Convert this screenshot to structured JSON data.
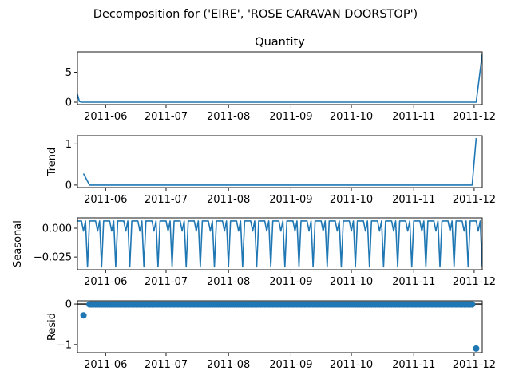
{
  "suptitle": "Decomposition for ('EIRE', 'ROSE CARAVAN DOORSTOP')",
  "chart_data": [
    {
      "type": "line",
      "panel": "observed",
      "title": "Quantity",
      "ylabel": "",
      "ylim": [
        -0.4,
        8.4
      ],
      "yticks": [
        0,
        5
      ],
      "xrange": [
        "2011-05-18",
        "2011-12-05"
      ],
      "xticks": [
        "2011-06",
        "2011-07",
        "2011-08",
        "2011-09",
        "2011-10",
        "2011-11",
        "2011-12"
      ],
      "series": [
        {
          "x": [
            "2011-05-18",
            "2011-05-19",
            "2011-05-20",
            "2011-12-01",
            "2011-12-02",
            "2011-12-05"
          ],
          "y": [
            1.3,
            0.1,
            0.0,
            0.0,
            0.0,
            8.0
          ]
        }
      ]
    },
    {
      "type": "line",
      "panel": "trend",
      "title": "",
      "ylabel": "Trend",
      "ylim": [
        -0.06,
        1.2
      ],
      "yticks": [
        0,
        1
      ],
      "xrange": [
        "2011-05-18",
        "2011-12-05"
      ],
      "xticks": [
        "2011-06",
        "2011-07",
        "2011-08",
        "2011-09",
        "2011-10",
        "2011-11",
        "2011-12"
      ],
      "series": [
        {
          "x": [
            "2011-05-21",
            "2011-05-24",
            "2011-11-30",
            "2011-12-02"
          ],
          "y": [
            0.28,
            0.0,
            0.0,
            1.14
          ]
        }
      ]
    },
    {
      "type": "line",
      "panel": "seasonal",
      "title": "",
      "ylabel": "Seasonal",
      "ylim": [
        -0.036,
        0.009
      ],
      "yticks": [
        0.0,
        -0.025
      ],
      "ytick_labels": [
        "0.000",
        "−0.025"
      ],
      "xrange": [
        "2011-05-18",
        "2011-12-05"
      ],
      "xticks": [
        "2011-06",
        "2011-07",
        "2011-08",
        "2011-09",
        "2011-10",
        "2011-11",
        "2011-12"
      ],
      "period_days": 7,
      "pattern": [
        0.0063,
        0.0063,
        0.0063,
        -0.0025,
        0.0063,
        -0.0335,
        0.0063
      ],
      "series": [
        {
          "x_start": "2011-05-18",
          "x_end": "2011-12-05"
        }
      ]
    },
    {
      "type": "scatter",
      "panel": "resid",
      "title": "",
      "ylabel": "Resid",
      "ylim": [
        -1.2,
        0.08
      ],
      "yticks": [
        0,
        -1
      ],
      "ytick_labels": [
        "0",
        "−1"
      ],
      "xrange": [
        "2011-05-18",
        "2011-12-05"
      ],
      "xticks": [
        "2011-06",
        "2011-07",
        "2011-08",
        "2011-09",
        "2011-10",
        "2011-11",
        "2011-12"
      ],
      "zero_line": true,
      "series": [
        {
          "x_start": "2011-05-24",
          "x_end": "2011-11-30",
          "baseline": -0.01,
          "outliers": [
            {
              "x": "2011-05-21",
              "y": -0.28
            },
            {
              "x": "2011-12-02",
              "y": -1.1
            }
          ]
        }
      ]
    }
  ],
  "colors": {
    "line": "#1f77b4",
    "axis": "#000000",
    "zero_line": "#000000"
  }
}
